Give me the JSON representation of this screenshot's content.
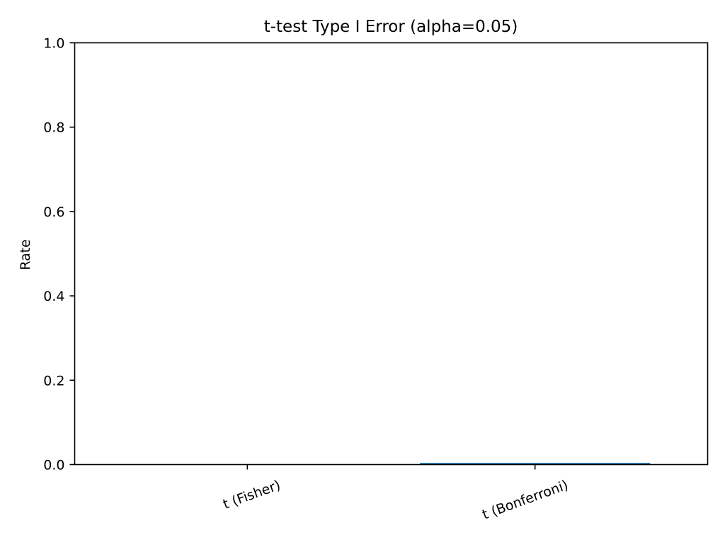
{
  "chart_data": {
    "type": "bar",
    "title": "t-test Type I Error (alpha=0.05)",
    "xlabel": "",
    "ylabel": "Rate",
    "categories": [
      "t (Fisher)",
      "t (Bonferroni)"
    ],
    "values": [
      0.0,
      0.004
    ],
    "ylim": [
      0,
      1.0
    ],
    "yticks": [
      "0.0",
      "0.2",
      "0.4",
      "0.6",
      "0.8",
      "1.0"
    ],
    "bar_color": "#1f77b4",
    "grid": false,
    "legend": "none"
  }
}
